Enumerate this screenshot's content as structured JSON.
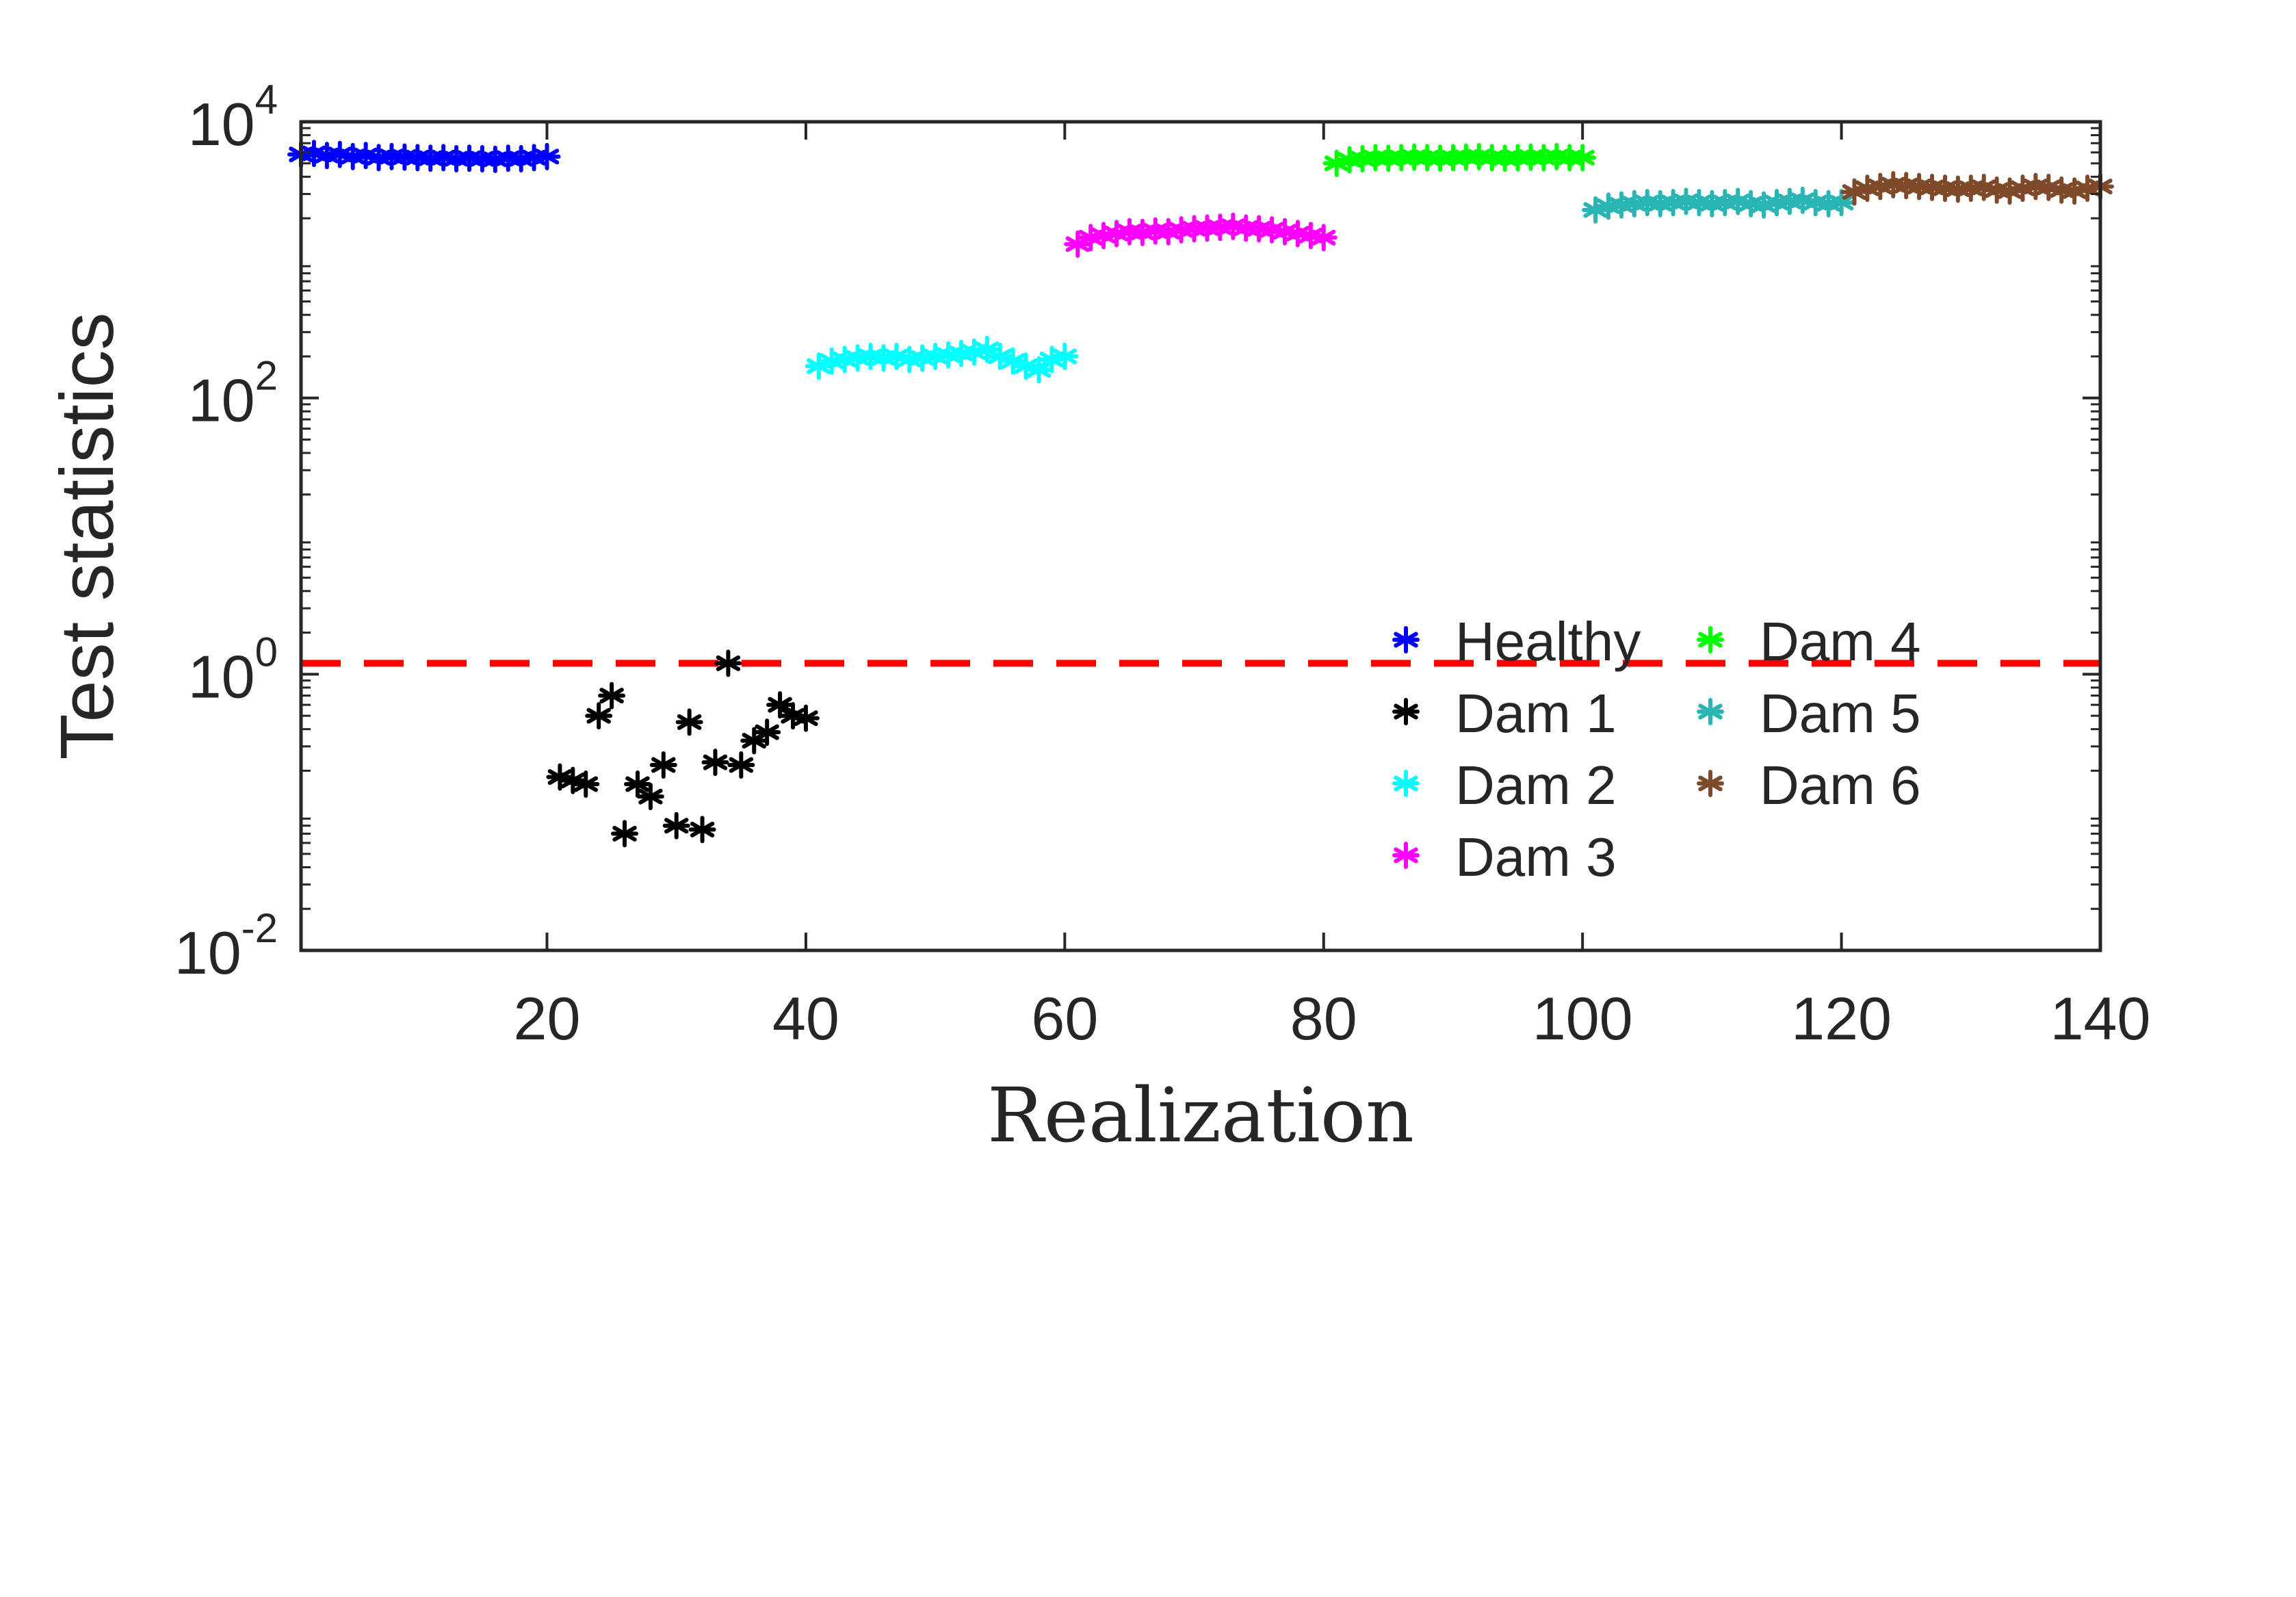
{
  "chart_data": {
    "type": "scatter",
    "title": "",
    "xlabel": "Realization",
    "ylabel": "Test statistics",
    "xlim": [
      1,
      140
    ],
    "ylim": [
      0.01,
      10000
    ],
    "yscale": "log",
    "grid": false,
    "legend_position": "inside-lower-right",
    "x_ticks": [
      20,
      40,
      60,
      80,
      100,
      120,
      140
    ],
    "x_tick_labels": [
      "20",
      "40",
      "60",
      "80",
      "100",
      "120",
      "140"
    ],
    "y_ticks": [
      0.01,
      1,
      100,
      10000
    ],
    "y_tick_labels": [
      {
        "base": "10",
        "exp": "-2"
      },
      {
        "base": "10",
        "exp": "0"
      },
      {
        "base": "10",
        "exp": "2"
      },
      {
        "base": "10",
        "exp": "4"
      }
    ],
    "marker": "*",
    "threshold": {
      "value": 1.2,
      "color": "#ff0000",
      "style": "dashed"
    },
    "series": [
      {
        "name": "Healthy",
        "color": "#0000ff",
        "x": [
          1,
          2,
          3,
          4,
          5,
          6,
          7,
          8,
          9,
          10,
          11,
          12,
          13,
          14,
          15,
          16,
          17,
          18,
          19,
          20
        ],
        "y": [
          5800,
          5900,
          5700,
          5800,
          5600,
          5700,
          5500,
          5600,
          5550,
          5500,
          5450,
          5500,
          5400,
          5450,
          5400,
          5350,
          5450,
          5400,
          5500,
          5600
        ]
      },
      {
        "name": "Dam 1",
        "color": "#000000",
        "x": [
          21,
          22,
          23,
          24,
          25,
          26,
          27,
          28,
          29,
          30,
          31,
          32,
          33,
          34,
          35,
          36,
          37,
          38,
          39,
          40
        ],
        "y": [
          0.18,
          0.17,
          0.16,
          0.5,
          0.7,
          0.07,
          0.16,
          0.13,
          0.22,
          0.08,
          0.45,
          0.075,
          0.23,
          1.2,
          0.22,
          0.33,
          0.38,
          0.6,
          0.5,
          0.48
        ]
      },
      {
        "name": "Dam 2",
        "color": "#00ffff",
        "x": [
          41,
          42,
          43,
          44,
          45,
          46,
          47,
          48,
          49,
          50,
          51,
          52,
          53,
          54,
          55,
          56,
          57,
          58,
          59,
          60
        ],
        "y": [
          170,
          185,
          190,
          195,
          200,
          195,
          200,
          190,
          195,
          200,
          205,
          210,
          215,
          225,
          200,
          185,
          170,
          160,
          190,
          200
        ]
      },
      {
        "name": "Dam 3",
        "color": "#ff00ff",
        "x": [
          61,
          62,
          63,
          64,
          65,
          66,
          67,
          68,
          69,
          70,
          71,
          72,
          73,
          74,
          75,
          76,
          77,
          78,
          79,
          80
        ],
        "y": [
          1300,
          1450,
          1500,
          1550,
          1600,
          1580,
          1620,
          1600,
          1650,
          1680,
          1700,
          1720,
          1750,
          1700,
          1680,
          1650,
          1600,
          1550,
          1500,
          1450
        ]
      },
      {
        "name": "Dam 4",
        "color": "#00ff00",
        "x": [
          81,
          82,
          83,
          84,
          85,
          86,
          87,
          88,
          89,
          90,
          91,
          92,
          93,
          94,
          95,
          96,
          97,
          98,
          99,
          100
        ],
        "y": [
          5000,
          5300,
          5400,
          5500,
          5450,
          5500,
          5550,
          5500,
          5450,
          5500,
          5550,
          5600,
          5500,
          5450,
          5500,
          5550,
          5500,
          5600,
          5500,
          5500
        ]
      },
      {
        "name": "Dam 5",
        "color": "#2ab5b5",
        "x": [
          101,
          102,
          103,
          104,
          105,
          106,
          107,
          108,
          109,
          110,
          111,
          112,
          113,
          114,
          115,
          116,
          117,
          118,
          119,
          120
        ],
        "y": [
          2300,
          2450,
          2500,
          2550,
          2600,
          2550,
          2600,
          2650,
          2600,
          2550,
          2600,
          2650,
          2550,
          2500,
          2600,
          2650,
          2700,
          2600,
          2550,
          2600
        ]
      },
      {
        "name": "Dam 6",
        "color": "#7f4a2a",
        "x": [
          121,
          122,
          123,
          124,
          125,
          126,
          127,
          128,
          129,
          130,
          131,
          132,
          133,
          134,
          135,
          136,
          137,
          138,
          139,
          140
        ],
        "y": [
          3100,
          3300,
          3400,
          3500,
          3450,
          3400,
          3350,
          3300,
          3250,
          3300,
          3350,
          3200,
          3150,
          3300,
          3400,
          3350,
          3200,
          3150,
          3300,
          3400
        ]
      }
    ],
    "legend_columns": [
      [
        "Healthy",
        "Dam 1",
        "Dam 2",
        "Dam 3"
      ],
      [
        "Dam 4",
        "Dam 5",
        "Dam 6"
      ]
    ]
  }
}
